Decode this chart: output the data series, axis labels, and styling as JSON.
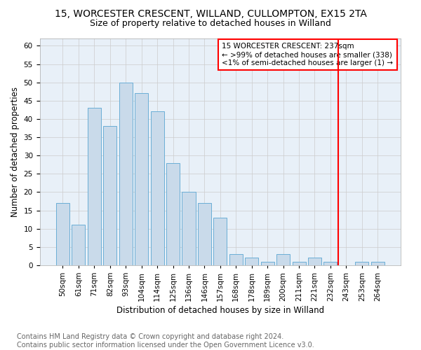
{
  "title1": "15, WORCESTER CRESCENT, WILLAND, CULLOMPTON, EX15 2TA",
  "title2": "Size of property relative to detached houses in Willand",
  "xlabel": "Distribution of detached houses by size in Willand",
  "ylabel": "Number of detached properties",
  "footer": "Contains HM Land Registry data © Crown copyright and database right 2024.\nContains public sector information licensed under the Open Government Licence v3.0.",
  "categories": [
    "50sqm",
    "61sqm",
    "71sqm",
    "82sqm",
    "93sqm",
    "104sqm",
    "114sqm",
    "125sqm",
    "136sqm",
    "146sqm",
    "157sqm",
    "168sqm",
    "178sqm",
    "189sqm",
    "200sqm",
    "211sqm",
    "221sqm",
    "232sqm",
    "243sqm",
    "253sqm",
    "264sqm"
  ],
  "values": [
    17,
    11,
    43,
    38,
    50,
    47,
    42,
    28,
    20,
    17,
    13,
    3,
    2,
    1,
    3,
    1,
    2,
    1,
    0,
    1,
    1
  ],
  "bar_color": "#c9daea",
  "bar_edge_color": "#6aaed6",
  "vline_x_index": 17.5,
  "vline_color": "red",
  "annotation_text": "15 WORCESTER CRESCENT: 237sqm\n← >99% of detached houses are smaller (338)\n<1% of semi-detached houses are larger (1) →",
  "annotation_box_color": "white",
  "annotation_box_edge": "red",
  "ylim": [
    0,
    62
  ],
  "yticks": [
    0,
    5,
    10,
    15,
    20,
    25,
    30,
    35,
    40,
    45,
    50,
    55,
    60
  ],
  "grid_color": "#cccccc",
  "plot_bg_color": "#e8f0f8",
  "fig_bg_color": "#ffffff",
  "title1_fontsize": 10,
  "title2_fontsize": 9,
  "axis_label_fontsize": 8.5,
  "tick_fontsize": 7.5,
  "annotation_fontsize": 7.5,
  "footer_fontsize": 7,
  "ylabel_fontsize": 8.5
}
